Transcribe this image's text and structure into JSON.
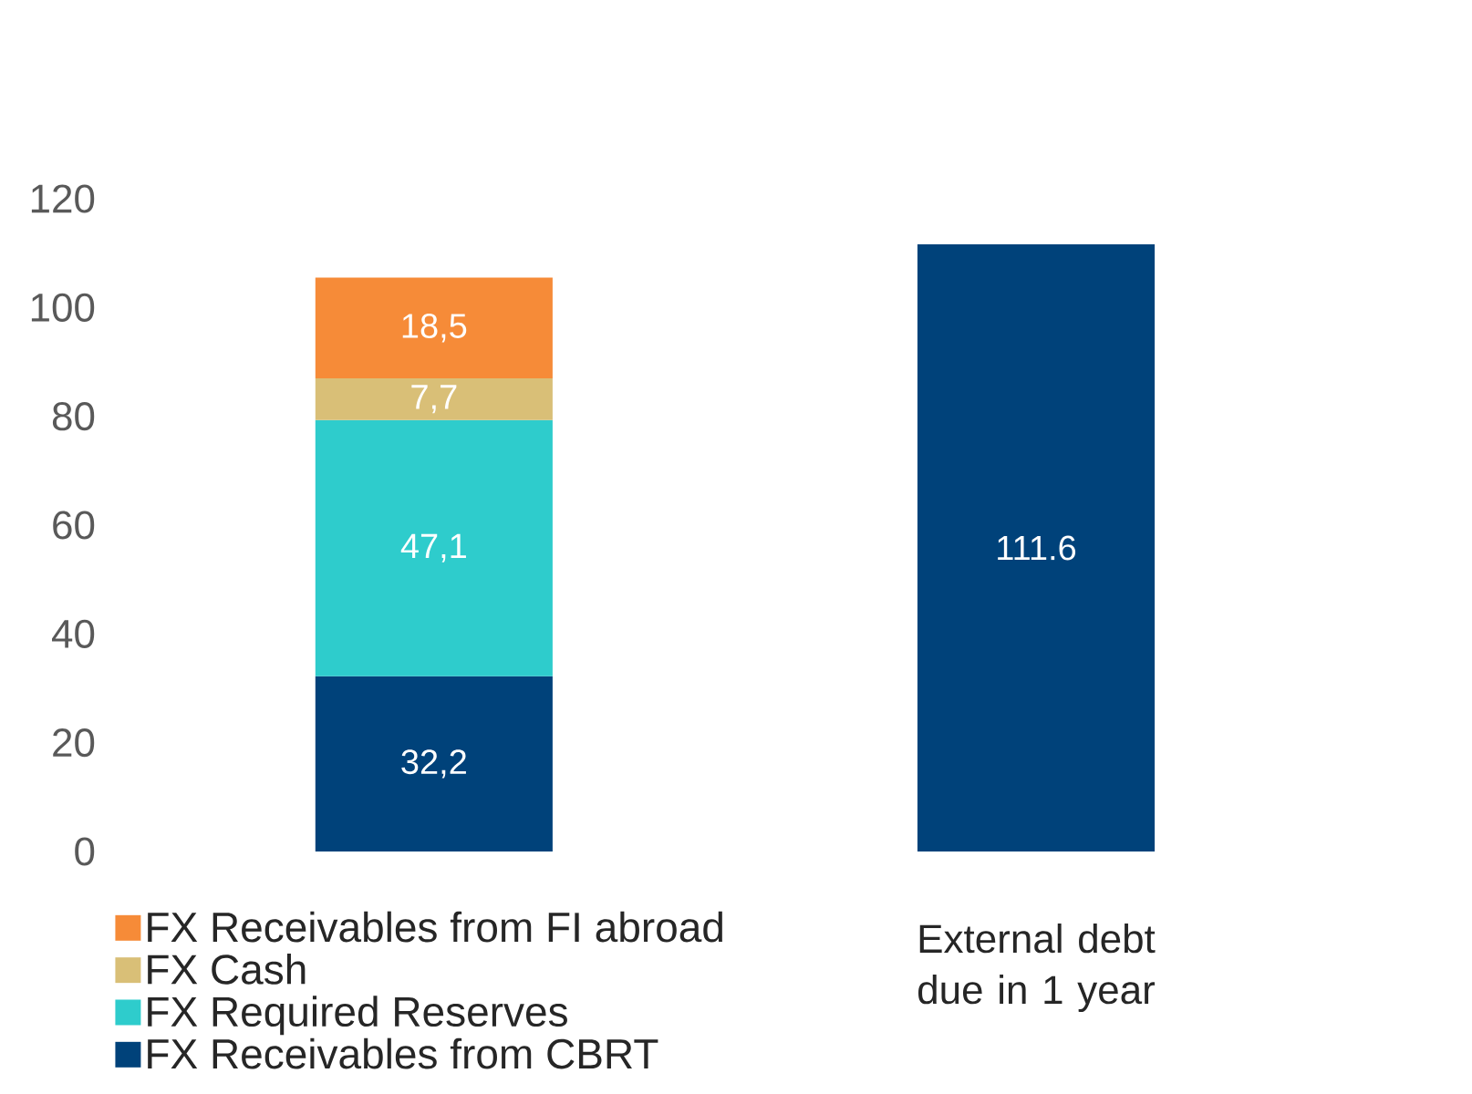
{
  "chart_data": {
    "type": "bar",
    "stacked": true,
    "categories": [
      null,
      "External debt due in 1 year"
    ],
    "series": [
      {
        "name": "FX Receivables from CBRT",
        "color": "#00427a",
        "values": [
          32.2,
          null
        ],
        "value_labels": [
          "32,2",
          null
        ]
      },
      {
        "name": "FX Required Reserves",
        "color": "#2ecccc",
        "values": [
          47.1,
          null
        ],
        "value_labels": [
          "47,1",
          null
        ]
      },
      {
        "name": "FX Cash",
        "color": "#d9bf77",
        "values": [
          7.7,
          null
        ],
        "value_labels": [
          "7,7",
          null
        ]
      },
      {
        "name": "FX Receivables from FI abroad",
        "color": "#f68b38",
        "values": [
          18.5,
          null
        ],
        "value_labels": [
          "18,5",
          null
        ]
      },
      {
        "color": "#00427a",
        "values": [
          null,
          111.6
        ],
        "value_labels": [
          null,
          "111.6"
        ]
      }
    ],
    "ylim": [
      0,
      120
    ],
    "yticks": [
      0,
      20,
      40,
      60,
      80,
      100,
      120
    ],
    "legend": "bottom left"
  }
}
